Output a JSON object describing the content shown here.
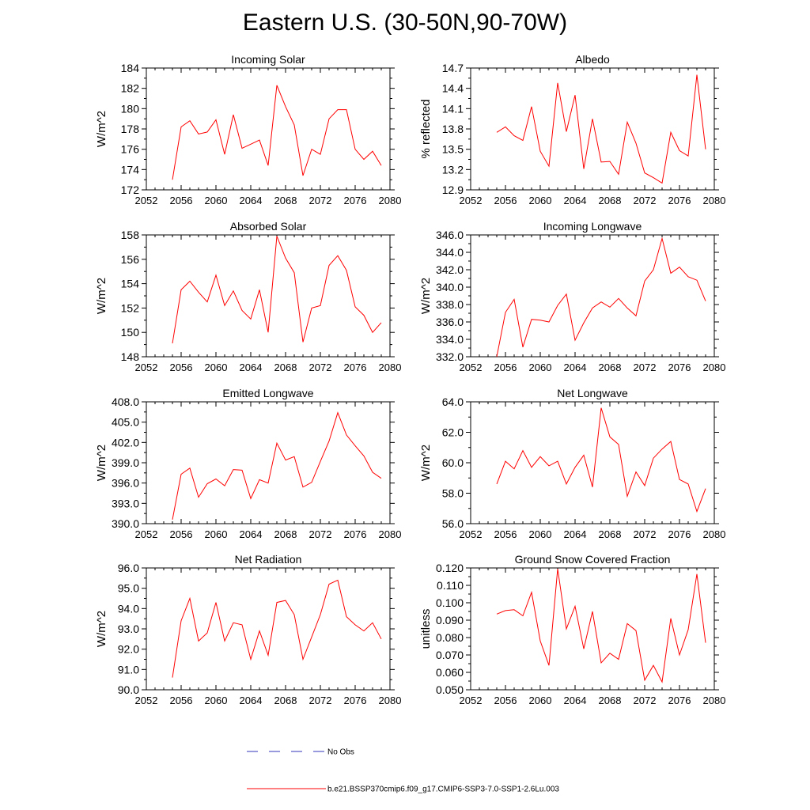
{
  "page_title": "Eastern U.S. (30-50N,90-70W)",
  "colors": {
    "series": "#ff0000",
    "obs": "#3333bb",
    "axes": "#000000"
  },
  "legend": {
    "obs_label": "No Obs",
    "model_label": "b.e21.BSSP370cmip6.f09_g17.CMIP6-SSP3-7.0-SSP1-2.6Lu.003"
  },
  "chart_data": [
    {
      "type": "line",
      "title": "Incoming Solar",
      "ylabel": "W/m^2",
      "xlim": [
        2052,
        2080
      ],
      "ylim": [
        172,
        184
      ],
      "xticks": [
        2052,
        2056,
        2060,
        2064,
        2068,
        2072,
        2076,
        2080
      ],
      "yticks": [
        "172",
        "174",
        "176",
        "178",
        "180",
        "182",
        "184"
      ],
      "x": [
        2055,
        2056,
        2057,
        2058,
        2059,
        2060,
        2061,
        2062,
        2063,
        2064,
        2065,
        2066,
        2067,
        2068,
        2069,
        2070,
        2071,
        2072,
        2073,
        2074,
        2075,
        2076,
        2077,
        2078,
        2079
      ],
      "y": [
        173.0,
        178.2,
        178.8,
        177.5,
        177.7,
        178.9,
        175.5,
        179.4,
        176.1,
        176.5,
        176.9,
        174.4,
        182.3,
        180.2,
        178.4,
        173.4,
        176.0,
        175.5,
        179.0,
        179.9,
        179.9,
        176.0,
        175.0,
        175.8,
        174.4
      ]
    },
    {
      "type": "line",
      "title": "Albedo",
      "ylabel": "% reflected",
      "xlim": [
        2052,
        2080
      ],
      "ylim": [
        12.9,
        14.7
      ],
      "xticks": [
        2052,
        2056,
        2060,
        2064,
        2068,
        2072,
        2076,
        2080
      ],
      "yticks": [
        "12.9",
        "13.2",
        "13.5",
        "13.8",
        "14.1",
        "14.4",
        "14.7"
      ],
      "x": [
        2055,
        2056,
        2057,
        2058,
        2059,
        2060,
        2061,
        2062,
        2063,
        2064,
        2065,
        2066,
        2067,
        2068,
        2069,
        2070,
        2071,
        2072,
        2073,
        2074,
        2075,
        2076,
        2077,
        2078,
        2079
      ],
      "y": [
        13.75,
        13.83,
        13.7,
        13.63,
        14.13,
        13.47,
        13.25,
        14.48,
        13.76,
        14.3,
        13.21,
        13.95,
        13.31,
        13.32,
        13.13,
        13.9,
        13.59,
        13.15,
        13.08,
        13.0,
        13.75,
        13.48,
        13.4,
        14.6,
        13.5
      ]
    },
    {
      "type": "line",
      "title": "Absorbed Solar",
      "ylabel": "W/m^2",
      "xlim": [
        2052,
        2080
      ],
      "ylim": [
        148,
        158
      ],
      "xticks": [
        2052,
        2056,
        2060,
        2064,
        2068,
        2072,
        2076,
        2080
      ],
      "yticks": [
        "148",
        "150",
        "152",
        "154",
        "156",
        "158"
      ],
      "x": [
        2055,
        2056,
        2057,
        2058,
        2059,
        2060,
        2061,
        2062,
        2063,
        2064,
        2065,
        2066,
        2067,
        2068,
        2069,
        2070,
        2071,
        2072,
        2073,
        2074,
        2075,
        2076,
        2077,
        2078,
        2079
      ],
      "y": [
        149.1,
        153.5,
        154.2,
        153.3,
        152.5,
        154.7,
        152.2,
        153.4,
        151.8,
        151.1,
        153.5,
        150.0,
        157.9,
        156.1,
        154.9,
        149.2,
        152.0,
        152.2,
        155.5,
        156.3,
        155.1,
        152.1,
        151.4,
        150.0,
        150.8
      ]
    },
    {
      "type": "line",
      "title": "Incoming Longwave",
      "ylabel": "W/m^2",
      "xlim": [
        2052,
        2080
      ],
      "ylim": [
        332,
        346
      ],
      "xticks": [
        2052,
        2056,
        2060,
        2064,
        2068,
        2072,
        2076,
        2080
      ],
      "yticks": [
        "332.0",
        "334.0",
        "336.0",
        "338.0",
        "340.0",
        "342.0",
        "344.0",
        "346.0"
      ],
      "x": [
        2055,
        2056,
        2057,
        2058,
        2059,
        2060,
        2061,
        2062,
        2063,
        2064,
        2065,
        2066,
        2067,
        2068,
        2069,
        2070,
        2071,
        2072,
        2073,
        2074,
        2075,
        2076,
        2077,
        2078,
        2079
      ],
      "y": [
        332.0,
        337.1,
        338.6,
        333.1,
        336.3,
        336.2,
        336.0,
        337.9,
        339.2,
        333.9,
        335.9,
        337.6,
        338.3,
        337.7,
        338.7,
        337.6,
        336.7,
        340.7,
        342.0,
        345.6,
        341.6,
        342.3,
        341.2,
        340.8,
        338.4
      ]
    },
    {
      "type": "line",
      "title": "Emitted Longwave",
      "ylabel": "W/m^2",
      "xlim": [
        2052,
        2080
      ],
      "ylim": [
        390,
        408
      ],
      "xticks": [
        2052,
        2056,
        2060,
        2064,
        2068,
        2072,
        2076,
        2080
      ],
      "yticks": [
        "390.0",
        "393.0",
        "396.0",
        "399.0",
        "402.0",
        "405.0",
        "408.0"
      ],
      "x": [
        2055,
        2056,
        2057,
        2058,
        2059,
        2060,
        2061,
        2062,
        2063,
        2064,
        2065,
        2066,
        2067,
        2068,
        2069,
        2070,
        2071,
        2072,
        2073,
        2074,
        2075,
        2076,
        2077,
        2078,
        2079
      ],
      "y": [
        390.6,
        397.3,
        398.2,
        393.9,
        395.9,
        396.6,
        395.6,
        398.0,
        397.9,
        393.7,
        396.5,
        396.0,
        401.9,
        399.4,
        399.9,
        395.4,
        396.1,
        399.2,
        402.2,
        406.4,
        403.1,
        401.5,
        400.0,
        397.6,
        396.7
      ]
    },
    {
      "type": "line",
      "title": "Net Longwave",
      "ylabel": "W/m^2",
      "xlim": [
        2052,
        2080
      ],
      "ylim": [
        56,
        64
      ],
      "xticks": [
        2052,
        2056,
        2060,
        2064,
        2068,
        2072,
        2076,
        2080
      ],
      "yticks": [
        "56.0",
        "58.0",
        "60.0",
        "62.0",
        "64.0"
      ],
      "x": [
        2055,
        2056,
        2057,
        2058,
        2059,
        2060,
        2061,
        2062,
        2063,
        2064,
        2065,
        2066,
        2067,
        2068,
        2069,
        2070,
        2071,
        2072,
        2073,
        2074,
        2075,
        2076,
        2077,
        2078,
        2079
      ],
      "y": [
        58.6,
        60.1,
        59.6,
        60.8,
        59.7,
        60.4,
        59.8,
        60.1,
        58.6,
        59.7,
        60.5,
        58.4,
        63.6,
        61.7,
        61.2,
        57.8,
        59.4,
        58.5,
        60.3,
        60.9,
        61.4,
        58.9,
        58.6,
        56.8,
        58.3
      ]
    },
    {
      "type": "line",
      "title": "Net Radiation",
      "ylabel": "W/m^2",
      "xlim": [
        2052,
        2080
      ],
      "ylim": [
        90,
        96
      ],
      "xticks": [
        2052,
        2056,
        2060,
        2064,
        2068,
        2072,
        2076,
        2080
      ],
      "yticks": [
        "90.0",
        "91.0",
        "92.0",
        "93.0",
        "94.0",
        "95.0",
        "96.0"
      ],
      "x": [
        2055,
        2056,
        2057,
        2058,
        2059,
        2060,
        2061,
        2062,
        2063,
        2064,
        2065,
        2066,
        2067,
        2068,
        2069,
        2070,
        2071,
        2072,
        2073,
        2074,
        2075,
        2076,
        2077,
        2078,
        2079
      ],
      "y": [
        90.6,
        93.4,
        94.5,
        92.4,
        92.8,
        94.3,
        92.4,
        93.3,
        93.2,
        91.5,
        92.9,
        91.7,
        94.3,
        94.4,
        93.7,
        91.5,
        92.6,
        93.7,
        95.2,
        95.4,
        93.6,
        93.2,
        92.9,
        93.3,
        92.5
      ]
    },
    {
      "type": "line",
      "title": "Ground Snow Covered Fraction",
      "ylabel": "unitless",
      "xlim": [
        2052,
        2080
      ],
      "ylim": [
        0.05,
        0.12
      ],
      "xticks": [
        2052,
        2056,
        2060,
        2064,
        2068,
        2072,
        2076,
        2080
      ],
      "yticks": [
        "0.050",
        "0.060",
        "0.070",
        "0.080",
        "0.090",
        "0.100",
        "0.110",
        "0.120"
      ],
      "x": [
        2055,
        2056,
        2057,
        2058,
        2059,
        2060,
        2061,
        2062,
        2063,
        2064,
        2065,
        2066,
        2067,
        2068,
        2069,
        2070,
        2071,
        2072,
        2073,
        2074,
        2075,
        2076,
        2077,
        2078,
        2079
      ],
      "y": [
        0.0935,
        0.0955,
        0.096,
        0.0925,
        0.106,
        0.078,
        0.064,
        0.1195,
        0.085,
        0.098,
        0.0735,
        0.095,
        0.0655,
        0.071,
        0.0675,
        0.088,
        0.084,
        0.0555,
        0.064,
        0.0545,
        0.091,
        0.07,
        0.0845,
        0.1165,
        0.077
      ]
    }
  ]
}
